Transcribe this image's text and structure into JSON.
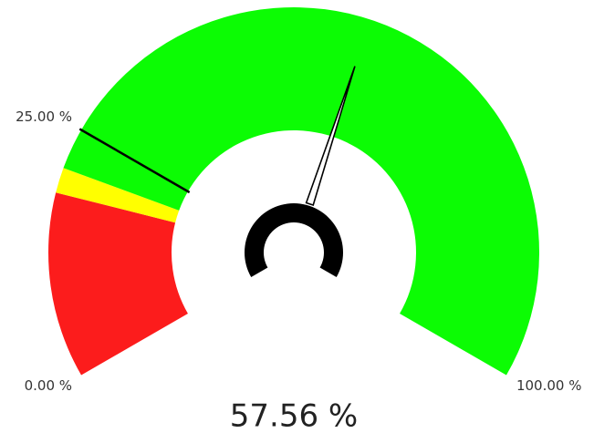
{
  "chart_data": {
    "type": "gauge",
    "ylim": [
      0,
      100
    ],
    "yticks": [
      {
        "value": 0,
        "label": "0.00 %"
      },
      {
        "value": 25,
        "label": "25.00 %"
      },
      {
        "value": 100,
        "label": "100.00 %"
      }
    ],
    "bands": [
      {
        "from": 0,
        "to": 18.4,
        "color": "#fc1c1c"
      },
      {
        "from": 18.4,
        "to": 20.9,
        "color": "#ffff00"
      },
      {
        "from": 20.9,
        "to": 100,
        "color": "#0cfc04"
      }
    ],
    "target": 25,
    "values": [
      57.56
    ],
    "value_labels": [
      "57.56 %"
    ]
  }
}
